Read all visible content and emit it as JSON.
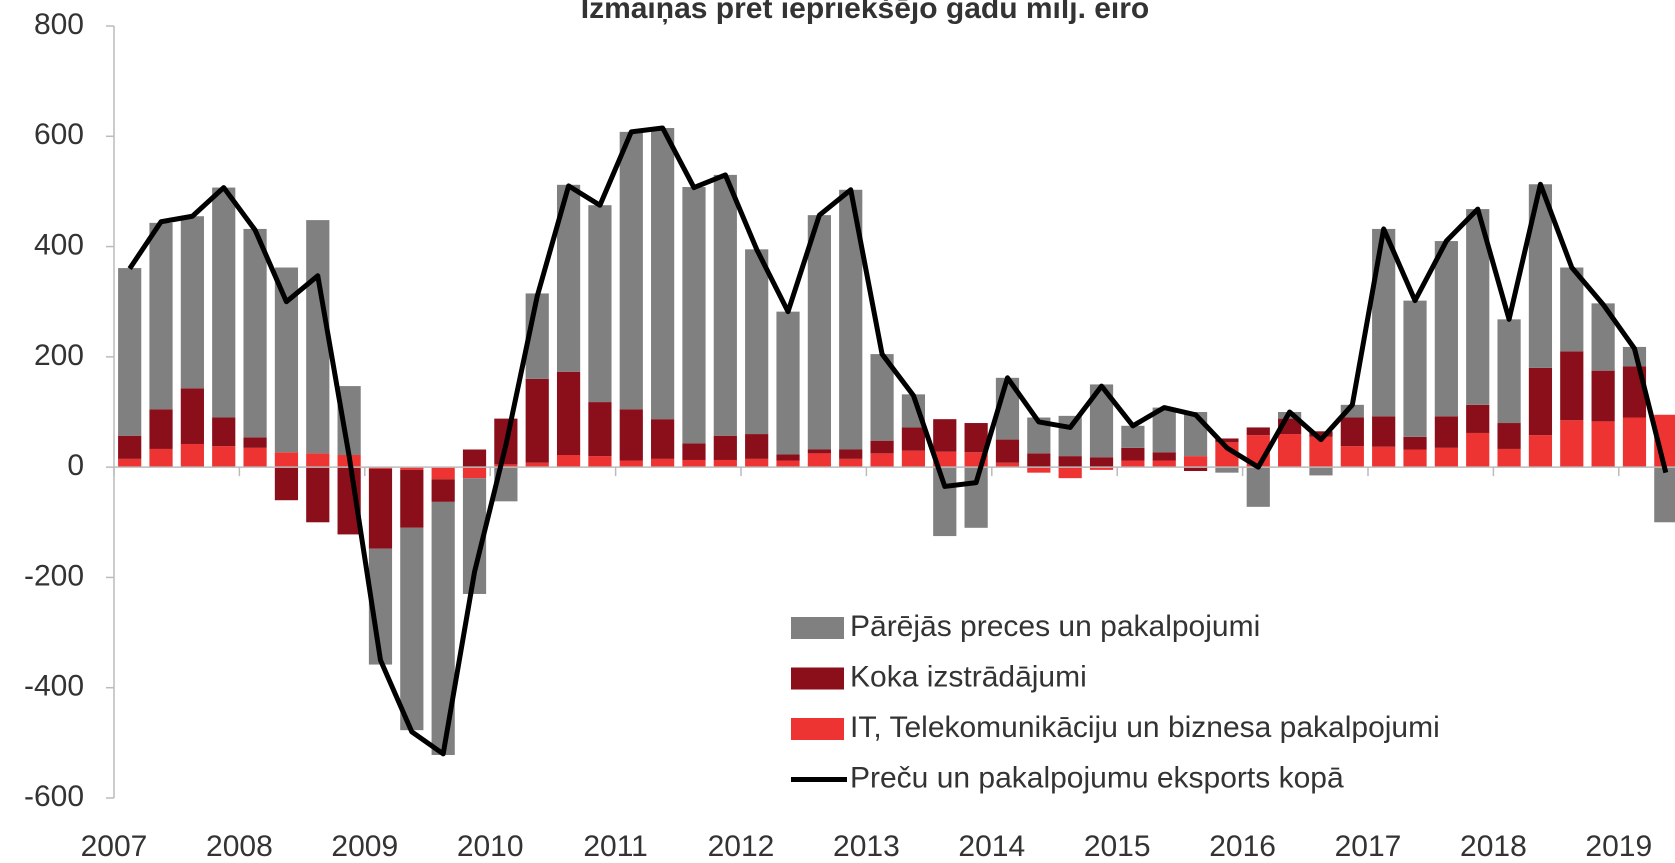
{
  "chart_data": {
    "type": "bar_line",
    "title": "Izmaiņas pret iepriekšējo gadu milj. eiro",
    "categories": [
      "2007",
      null,
      null,
      null,
      "2008",
      null,
      null,
      null,
      "2009",
      null,
      null,
      null,
      "2010",
      null,
      null,
      null,
      "2011",
      null,
      null,
      null,
      "2012",
      null,
      null,
      null,
      "2013",
      null,
      null,
      null,
      "2014",
      null,
      null,
      null,
      "2015",
      null,
      null,
      null,
      "2016",
      null,
      null,
      null,
      "2017",
      null,
      null,
      null,
      "2018",
      null,
      null,
      null,
      "2019",
      null
    ],
    "series": [
      {
        "name": "Pārējās preces un pakalpojumi",
        "color": "#808080",
        "kind": "bar",
        "values": [
          304,
          338,
          312,
          417,
          378,
          335,
          423,
          125,
          -210,
          -367,
          -459,
          -210,
          -62,
          155,
          339,
          357,
          503,
          528,
          465,
          473,
          335,
          259,
          425,
          471,
          157,
          60,
          -125,
          -110,
          112,
          65,
          73,
          132,
          40,
          81,
          80,
          -10,
          -72,
          12,
          -15,
          23,
          340,
          247,
          318,
          355,
          188,
          333,
          152,
          122,
          35,
          -100
        ]
      },
      {
        "name": "Koka izstrādājumi",
        "color": "#8b0f1a",
        "kind": "bar",
        "values": [
          42,
          72,
          101,
          52,
          19,
          -60,
          -100,
          -122,
          -145,
          -105,
          -41,
          32,
          83,
          152,
          151,
          98,
          93,
          72,
          30,
          44,
          45,
          11,
          7,
          17,
          23,
          42,
          59,
          53,
          42,
          25,
          20,
          18,
          23,
          15,
          -7,
          7,
          14,
          28,
          10,
          52,
          55,
          23,
          57,
          51,
          47,
          122,
          125,
          92,
          93,
          0
        ]
      },
      {
        "name": "IT, Telekomunikāciju un biznesa pakalpojumi",
        "color": "#ee3333",
        "kind": "bar",
        "values": [
          15,
          33,
          42,
          38,
          35,
          27,
          25,
          22,
          -3,
          -5,
          -22,
          -20,
          5,
          8,
          22,
          20,
          12,
          15,
          13,
          13,
          15,
          12,
          25,
          15,
          25,
          30,
          28,
          27,
          8,
          -10,
          -20,
          -5,
          12,
          12,
          20,
          45,
          58,
          60,
          55,
          38,
          37,
          32,
          35,
          62,
          33,
          58,
          85,
          83,
          90,
          95
        ]
      },
      {
        "name": "Preču un pakalpojumu eksports kopā",
        "color": "#000000",
        "kind": "line",
        "values": [
          360,
          445,
          455,
          507,
          430,
          300,
          347,
          20,
          -350,
          -480,
          -520,
          -190,
          40,
          310,
          510,
          475,
          608,
          615,
          507,
          530,
          395,
          282,
          457,
          503,
          205,
          130,
          -35,
          -28,
          162,
          82,
          72,
          147,
          75,
          108,
          95,
          35,
          0,
          100,
          50,
          113,
          432,
          302,
          410,
          468,
          268,
          513,
          362,
          295,
          215,
          -10
        ]
      }
    ],
    "ylim": [
      -600,
      800
    ],
    "yticks": [
      -600,
      -400,
      -200,
      0,
      200,
      400,
      600,
      800
    ]
  }
}
